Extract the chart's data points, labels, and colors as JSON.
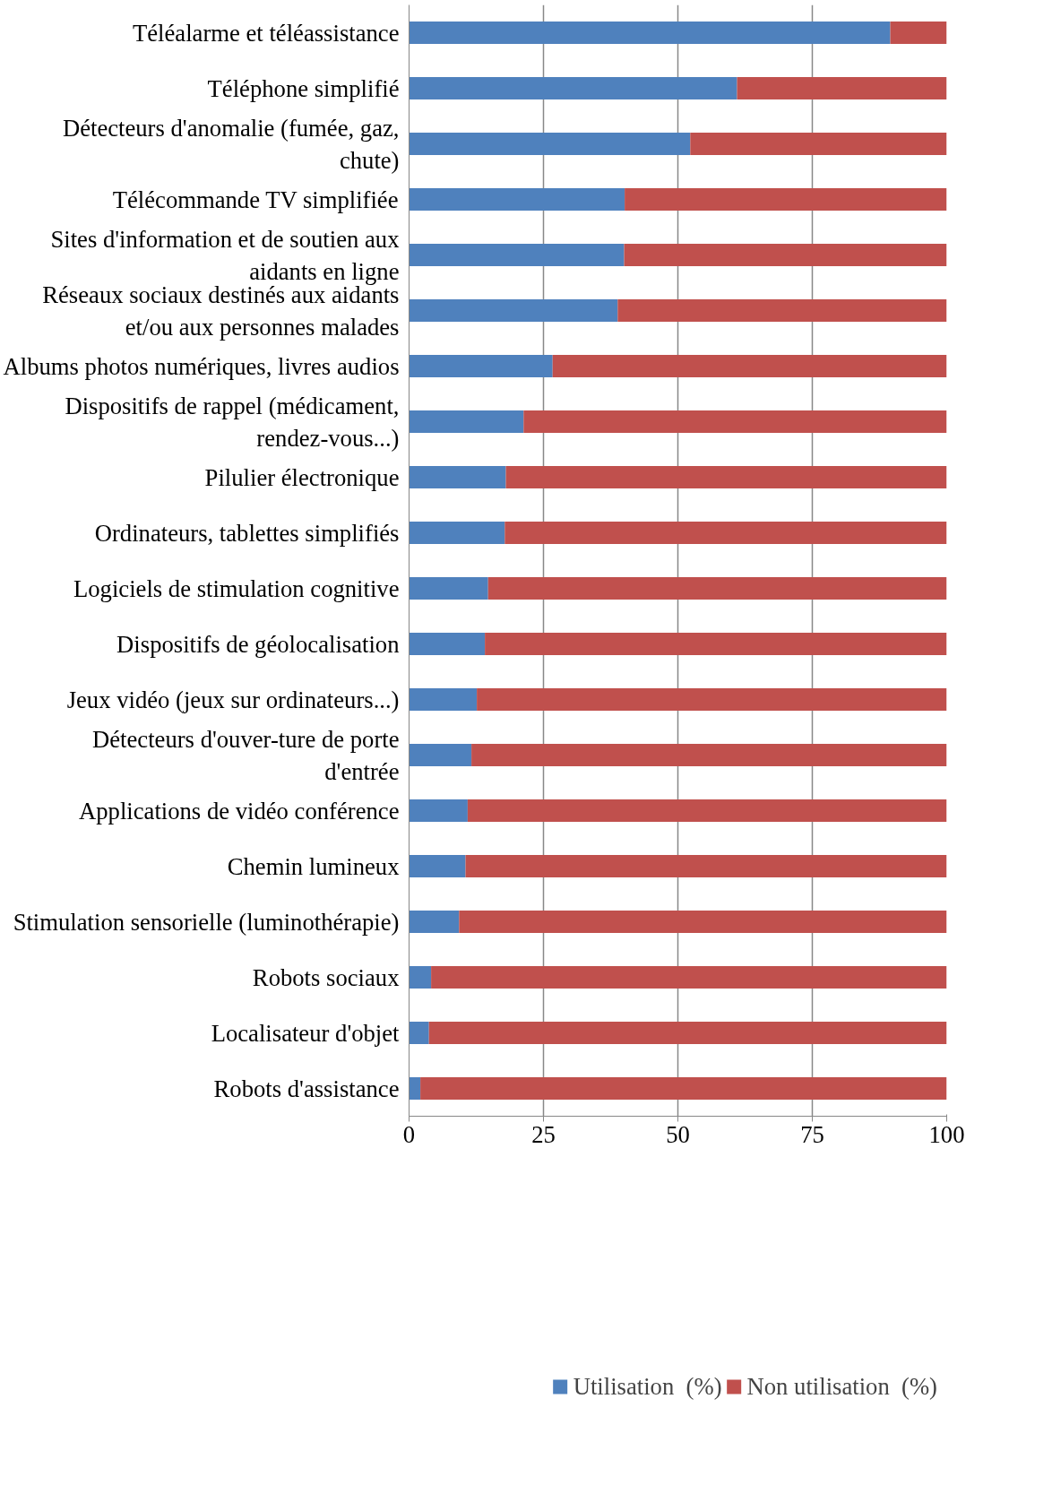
{
  "chart_data": {
    "type": "bar",
    "orientation": "horizontal",
    "stacked": true,
    "categories": [
      "Téléalarme et téléassistance",
      "Téléphone simplifié",
      "Détecteurs d'anomalie (fumée, gaz, chute)",
      "Télécommande TV simplifiée",
      "Sites d'information et de soutien aux aidants en ligne",
      "Réseaux sociaux destinés aux aidants et/ou aux personnes malades",
      "Albums photos numériques, livres audios",
      "Dispositifs de rappel (médicament, rendez-vous...)",
      "Pilulier électronique",
      "Ordinateurs, tablettes simplifiés",
      "Logiciels de stimulation cognitive",
      "Dispositifs de géolocalisation",
      "Jeux vidéo (jeux sur ordinateurs...)",
      "Détecteurs d'ouver-ture de porte d'entrée",
      "Applications de vidéo conférence",
      "Chemin lumineux",
      "Stimulation sensorielle (luminothérapie)",
      "Robots sociaux",
      "Localisateur d'objet",
      "Robots d'assistance"
    ],
    "series": [
      {
        "name": "Utilisation  (%)",
        "color": "#4f81bd",
        "values": [
          89.5,
          61,
          52.3,
          40.1,
          40,
          38.8,
          26.7,
          21.3,
          18,
          17.8,
          14.7,
          14.1,
          12.6,
          11.6,
          10.9,
          10.5,
          9.3,
          4.1,
          3.7,
          2.1
        ]
      },
      {
        "name": "Non utilisation  (%)",
        "color": "#c0504d",
        "values": [
          10.5,
          39,
          47.7,
          59.9,
          60,
          61.2,
          73.3,
          78.7,
          82,
          82.2,
          85.3,
          85.9,
          87.4,
          88.4,
          89.1,
          89.5,
          90.7,
          95.9,
          96.3,
          97.9
        ]
      }
    ],
    "xlim": [
      0,
      100
    ],
    "xticks": [
      0,
      25,
      50,
      75,
      100
    ],
    "grid": "x",
    "legend": "bottom"
  }
}
